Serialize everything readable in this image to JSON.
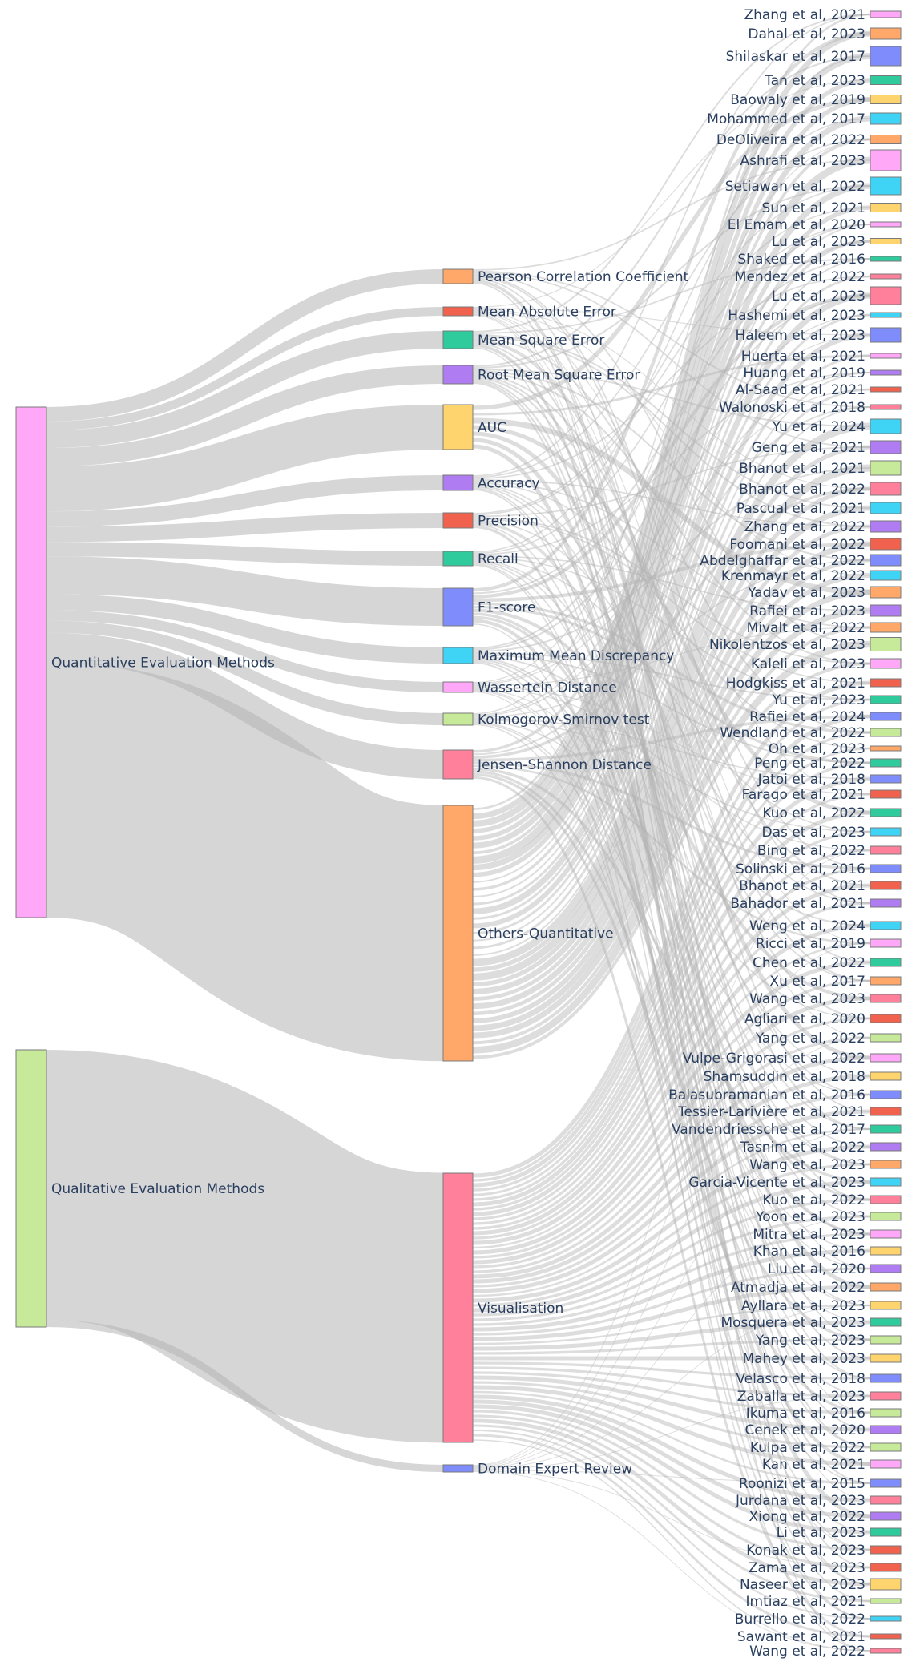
{
  "sources": [
    {
      "label": "Quantitative Evaluation Methods",
      "color": "#FFA8F8"
    },
    {
      "label": "Qualitative Evaluation Methods",
      "color": "#C6EA9A"
    }
  ],
  "methods": [
    {
      "label": "Pearson Correlation Coefficient",
      "color": "#FFA869",
      "source": 0
    },
    {
      "label": "Mean Absolute Error",
      "color": "#F0624E",
      "source": 0
    },
    {
      "label": "Mean Square Error",
      "color": "#2FCB9C",
      "source": 0
    },
    {
      "label": "Root Mean Square Error",
      "color": "#B07CF2",
      "source": 0
    },
    {
      "label": "AUC",
      "color": "#FED46E",
      "source": 0
    },
    {
      "label": "Accuracy",
      "color": "#B07CF2",
      "source": 0
    },
    {
      "label": "Precision",
      "color": "#F0624E",
      "source": 0
    },
    {
      "label": "Recall",
      "color": "#2FCB9C",
      "source": 0
    },
    {
      "label": "F1-score",
      "color": "#7F8CFC",
      "source": 0
    },
    {
      "label": "Maximum Mean Discrepancy",
      "color": "#3FD4F5",
      "source": 0
    },
    {
      "label": "Wassertein Distance",
      "color": "#FFA8F8",
      "source": 0
    },
    {
      "label": "Kolmogorov-Smirnov test",
      "color": "#C6EA9A",
      "source": 0
    },
    {
      "label": "Jensen-Shannon Distance",
      "color": "#FF809A",
      "source": 0
    },
    {
      "label": "Others-Quantitative",
      "color": "#FFA869",
      "source": 0
    },
    {
      "label": "Visualisation",
      "color": "#FF809A",
      "source": 1
    },
    {
      "label": "Domain Expert Review",
      "color": "#7F8CFC",
      "source": 1
    }
  ],
  "papers": [
    {
      "label": "Zhang et al, 2021",
      "color": "#FFA8F8"
    },
    {
      "label": "Dahal et al, 2023",
      "color": "#FFA869"
    },
    {
      "label": "Shilaskar et al, 2017",
      "color": "#7F8CFC"
    },
    {
      "label": "Tan et al, 2023",
      "color": "#2FCB9C"
    },
    {
      "label": "Baowaly et al, 2019",
      "color": "#FED46E"
    },
    {
      "label": "Mohammed et al, 2017",
      "color": "#3FD4F5"
    },
    {
      "label": "DeOliveira et al, 2022",
      "color": "#FFA869"
    },
    {
      "label": "Ashrafi et al, 2023",
      "color": "#FFA8F8"
    },
    {
      "label": "Setiawan et al, 2022",
      "color": "#3FD4F5"
    },
    {
      "label": "Sun et al, 2021",
      "color": "#FED46E"
    },
    {
      "label": "El Emam et al, 2020",
      "color": "#FFA8F8"
    },
    {
      "label": "Lu et al, 2023",
      "color": "#FED46E"
    },
    {
      "label": "Shaked et al, 2016",
      "color": "#2FCB9C"
    },
    {
      "label": "Mendez et al, 2022",
      "color": "#FF809A"
    },
    {
      "label": "Lu et al, 2023",
      "color": "#FF809A"
    },
    {
      "label": "Hashemi et al, 2023",
      "color": "#3FD4F5"
    },
    {
      "label": "Haleem et al, 2023",
      "color": "#7F8CFC"
    },
    {
      "label": "Huerta et al, 2021",
      "color": "#FFA8F8"
    },
    {
      "label": "Huang et al, 2019",
      "color": "#B07CF2"
    },
    {
      "label": "Al-Saad et al, 2021",
      "color": "#F0624E"
    },
    {
      "label": "Walonoski et al, 2018",
      "color": "#FF809A"
    },
    {
      "label": "Yu et al, 2024",
      "color": "#3FD4F5"
    },
    {
      "label": "Geng et al, 2021",
      "color": "#B07CF2"
    },
    {
      "label": "Bhanot et al, 2021",
      "color": "#C6EA9A"
    },
    {
      "label": "Bhanot et al, 2022",
      "color": "#FF809A"
    },
    {
      "label": "Pascual et al, 2021",
      "color": "#3FD4F5"
    },
    {
      "label": "Zhang et al, 2022",
      "color": "#B07CF2"
    },
    {
      "label": "Foomani et al, 2022",
      "color": "#F0624E"
    },
    {
      "label": "Abdelghaffar et al, 2022",
      "color": "#7F8CFC"
    },
    {
      "label": "Krenmayr et al, 2022",
      "color": "#3FD4F5"
    },
    {
      "label": "Yadav et al, 2023",
      "color": "#FFA869"
    },
    {
      "label": "Rafiei et al, 2023",
      "color": "#B07CF2"
    },
    {
      "label": "Mivalt et al, 2022",
      "color": "#FFA869"
    },
    {
      "label": "Nikolentzos et al, 2023",
      "color": "#C6EA9A"
    },
    {
      "label": "Kaleli et al, 2023",
      "color": "#FFA8F8"
    },
    {
      "label": "Hodgkiss et al, 2021",
      "color": "#F0624E"
    },
    {
      "label": "Yu et al, 2023",
      "color": "#2FCB9C"
    },
    {
      "label": "Rafiei et al, 2024",
      "color": "#7F8CFC"
    },
    {
      "label": "Wendland et al, 2022",
      "color": "#C6EA9A"
    },
    {
      "label": "Oh et al, 2023",
      "color": "#FFA869"
    },
    {
      "label": "Peng et al, 2022",
      "color": "#2FCB9C"
    },
    {
      "label": "Jatoi et al, 2018",
      "color": "#7F8CFC"
    },
    {
      "label": "Farago et al, 2021",
      "color": "#F0624E"
    },
    {
      "label": "Kuo et al, 2022",
      "color": "#2FCB9C"
    },
    {
      "label": "Das et al, 2023",
      "color": "#3FD4F5"
    },
    {
      "label": "Bing et al, 2022",
      "color": "#FF809A"
    },
    {
      "label": "Solinski et al, 2016",
      "color": "#7F8CFC"
    },
    {
      "label": "Bhanot et al, 2021",
      "color": "#F0624E"
    },
    {
      "label": "Bahador et al, 2021",
      "color": "#B07CF2"
    },
    {
      "label": "Weng et al, 2024",
      "color": "#3FD4F5"
    },
    {
      "label": "Ricci et al, 2019",
      "color": "#FFA8F8"
    },
    {
      "label": "Chen et al, 2022",
      "color": "#2FCB9C"
    },
    {
      "label": "Xu et al, 2017",
      "color": "#FFA869"
    },
    {
      "label": "Wang et al, 2023",
      "color": "#FF809A"
    },
    {
      "label": "Agliari et al, 2020",
      "color": "#F0624E"
    },
    {
      "label": "Yang et al, 2022",
      "color": "#C6EA9A"
    },
    {
      "label": "Vulpe-Grigorasi et al, 2022",
      "color": "#FFA8F8"
    },
    {
      "label": "Shamsuddin et al, 2018",
      "color": "#FED46E"
    },
    {
      "label": "Balasubramanian et al, 2016",
      "color": "#7F8CFC"
    },
    {
      "label": "Tessier-Larivière et al, 2021",
      "color": "#F0624E"
    },
    {
      "label": "Vandendriessche et al, 2017",
      "color": "#2FCB9C"
    },
    {
      "label": "Tasnim et al, 2022",
      "color": "#B07CF2"
    },
    {
      "label": "Wang et al, 2023",
      "color": "#FFA869"
    },
    {
      "label": "Garcia-Vicente et al, 2023",
      "color": "#3FD4F5"
    },
    {
      "label": "Kuo et al, 2022",
      "color": "#FF809A"
    },
    {
      "label": "Yoon et al, 2023",
      "color": "#C6EA9A"
    },
    {
      "label": "Mitra et al, 2023",
      "color": "#FFA8F8"
    },
    {
      "label": "Khan et al, 2016",
      "color": "#FED46E"
    },
    {
      "label": "Liu et al, 2020",
      "color": "#B07CF2"
    },
    {
      "label": "Atmadja et al, 2022",
      "color": "#FFA869"
    },
    {
      "label": "Ayllara et al, 2023",
      "color": "#FED46E"
    },
    {
      "label": "Mosquera et al, 2023",
      "color": "#2FCB9C"
    },
    {
      "label": "Yang et al, 2023",
      "color": "#C6EA9A"
    },
    {
      "label": "Mahey et al, 2023",
      "color": "#FED46E"
    },
    {
      "label": "Velasco et al, 2018",
      "color": "#7F8CFC"
    },
    {
      "label": "Zaballa et al, 2023",
      "color": "#FF809A"
    },
    {
      "label": "Ikuma et al, 2016",
      "color": "#C6EA9A"
    },
    {
      "label": "Cenek et al, 2020",
      "color": "#B07CF2"
    },
    {
      "label": "Kulpa et al, 2022",
      "color": "#C6EA9A"
    },
    {
      "label": "Kan et al, 2021",
      "color": "#FFA8F8"
    },
    {
      "label": "Roonizi et al, 2015",
      "color": "#7F8CFC"
    },
    {
      "label": "Jurdana et al, 2023",
      "color": "#FF809A"
    },
    {
      "label": "Xiong et al, 2022",
      "color": "#B07CF2"
    },
    {
      "label": "Li et al, 2023",
      "color": "#2FCB9C"
    },
    {
      "label": "Konak et al, 2023",
      "color": "#F0624E"
    },
    {
      "label": "Zama et al, 2023",
      "color": "#F0624E"
    },
    {
      "label": "Naseer et al, 2023",
      "color": "#FED46E"
    },
    {
      "label": "Imtiaz et al, 2021",
      "color": "#C6EA9A"
    },
    {
      "label": "Burrello et al, 2022",
      "color": "#3FD4F5"
    },
    {
      "label": "Sawant et al, 2021",
      "color": "#F0624E"
    },
    {
      "label": "Wang et al, 2022",
      "color": "#FF809A"
    }
  ]
}
